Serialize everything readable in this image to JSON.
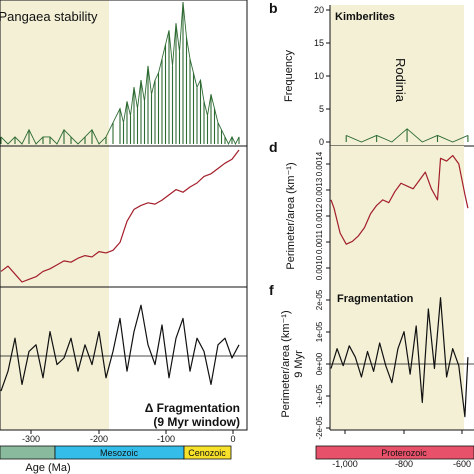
{
  "chart_data": [
    {
      "type": "line",
      "panel": "a",
      "region_label": "Pangaea stability",
      "x_domain": [
        -340,
        10
      ],
      "ylim": [
        0,
        20
      ],
      "shade_x": [
        -340,
        -170
      ],
      "x": [
        -340,
        -330,
        -320,
        -310,
        -300,
        -290,
        -280,
        -270,
        -260,
        -250,
        -240,
        -230,
        -220,
        -210,
        -200,
        -190,
        -180,
        -170,
        -165,
        -160,
        -155,
        -150,
        -145,
        -140,
        -135,
        -130,
        -125,
        -120,
        -115,
        -110,
        -105,
        -100,
        -95,
        -90,
        -85,
        -80,
        -75,
        -70,
        -65,
        -60,
        -55,
        -50,
        -45,
        -40,
        -35,
        -30,
        -25,
        -20,
        -15,
        -10,
        -5,
        0
      ],
      "values": [
        1,
        0,
        1,
        0,
        2,
        0,
        1,
        1,
        0,
        2,
        1,
        0,
        1,
        2,
        0,
        1,
        3,
        5,
        3,
        6,
        4,
        8,
        5,
        9,
        6,
        11,
        7,
        9,
        10,
        12,
        14,
        16,
        11,
        17,
        13,
        20,
        15,
        12,
        10,
        8,
        9,
        6,
        4,
        7,
        5,
        3,
        2,
        1,
        0,
        1,
        0,
        1
      ],
      "color": "#2e6b33"
    },
    {
      "type": "line",
      "panel": "c",
      "x_domain": [
        -340,
        10
      ],
      "ylim": [
        0,
        1
      ],
      "shade_x": [
        -340,
        -170
      ],
      "x": [
        -340,
        -330,
        -320,
        -310,
        -300,
        -290,
        -280,
        -270,
        -260,
        -250,
        -240,
        -230,
        -220,
        -210,
        -200,
        -190,
        -180,
        -170,
        -160,
        -150,
        -140,
        -130,
        -120,
        -110,
        -100,
        -90,
        -80,
        -70,
        -60,
        -50,
        -40,
        -30,
        -20,
        -10,
        0
      ],
      "values": [
        0.08,
        0.12,
        0.06,
        0.0,
        0.02,
        0.04,
        0.08,
        0.1,
        0.13,
        0.16,
        0.15,
        0.18,
        0.2,
        0.19,
        0.23,
        0.22,
        0.24,
        0.3,
        0.46,
        0.55,
        0.58,
        0.6,
        0.59,
        0.62,
        0.66,
        0.7,
        0.68,
        0.72,
        0.75,
        0.8,
        0.82,
        0.86,
        0.9,
        0.93,
        1.0
      ],
      "color": "#a31e2a"
    },
    {
      "type": "line",
      "panel": "e",
      "title": "Δ Fragmentation",
      "subtitle": "(9 Myr window)",
      "x_domain": [
        -340,
        10
      ],
      "ylim": [
        -1,
        1
      ],
      "zero_line": true,
      "shade_x": [
        -340,
        -170
      ],
      "x": [
        -340,
        -330,
        -320,
        -310,
        -300,
        -290,
        -280,
        -270,
        -260,
        -250,
        -240,
        -230,
        -220,
        -210,
        -200,
        -190,
        -180,
        -170,
        -160,
        -150,
        -140,
        -130,
        -120,
        -110,
        -100,
        -90,
        -80,
        -70,
        -60,
        -50,
        -40,
        -30,
        -20,
        -10,
        0
      ],
      "values": [
        -0.5,
        -0.2,
        0.3,
        -0.4,
        0.1,
        0.2,
        -0.3,
        0.4,
        -0.1,
        0.0,
        0.3,
        -0.2,
        0.2,
        -0.1,
        0.4,
        -0.3,
        0.1,
        0.6,
        -0.2,
        0.4,
        0.8,
        0.2,
        -0.1,
        0.5,
        -0.3,
        0.3,
        0.6,
        -0.2,
        0.3,
        0.1,
        -0.4,
        0.2,
        0.3,
        0.0,
        0.2
      ],
      "color": "#111111"
    },
    {
      "type": "line",
      "panel": "b",
      "title": "Kimberlites",
      "region_label": "Rodinia",
      "ylabel": "Frequency",
      "x_domain": [
        -1050,
        -580
      ],
      "ylim": [
        0,
        20
      ],
      "yticks": [
        "0",
        "5",
        "10",
        "15",
        "20"
      ],
      "shade_x": [
        -1050,
        -600
      ],
      "x": [
        -1000,
        -950,
        -900,
        -850,
        -800,
        -750,
        -700,
        -650,
        -600
      ],
      "values": [
        1,
        0,
        1,
        0,
        2,
        0,
        1,
        0,
        1
      ],
      "color": "#2e6b33"
    },
    {
      "type": "line",
      "panel": "d",
      "ylabel": "Perimeter/area (km⁻¹)",
      "x_domain": [
        -1050,
        -580
      ],
      "ylim": [
        0.00098,
        0.00146
      ],
      "yticks": [
        "0.0010",
        "0.0011",
        "0.0012",
        "0.0013",
        "0.0014"
      ],
      "shade_x": [
        -1050,
        -600
      ],
      "x": [
        -1050,
        -1040,
        -1020,
        -1000,
        -980,
        -960,
        -940,
        -920,
        -900,
        -880,
        -860,
        -840,
        -820,
        -800,
        -780,
        -760,
        -740,
        -720,
        -700,
        -690,
        -670,
        -650,
        -630,
        -610,
        -600
      ],
      "values": [
        0.00128,
        0.00125,
        0.00116,
        0.00112,
        0.00113,
        0.00115,
        0.00118,
        0.00123,
        0.00126,
        0.00128,
        0.00127,
        0.00131,
        0.00134,
        0.00133,
        0.00132,
        0.00135,
        0.00138,
        0.00132,
        0.00128,
        0.00143,
        0.00142,
        0.00144,
        0.00141,
        0.0013,
        0.00125
      ],
      "color": "#a31e2a"
    },
    {
      "type": "line",
      "panel": "f",
      "title": "Fragmentation",
      "ylabel": "Perimeter/area (km⁻¹)",
      "ylabel2": "9 Myr",
      "x_domain": [
        -1050,
        -580
      ],
      "ylim": [
        -2.4e-05,
        2.4e-05
      ],
      "yticks": [
        "-2e-05",
        "-1e-05",
        "0e+00",
        "1e-05",
        "2e-05"
      ],
      "zero_line": true,
      "shade_x": [
        -1050,
        -600
      ],
      "x": [
        -1050,
        -1030,
        -1010,
        -990,
        -970,
        -950,
        -930,
        -910,
        -890,
        -870,
        -850,
        -830,
        -810,
        -790,
        -770,
        -750,
        -730,
        -710,
        -690,
        -670,
        -650,
        -630,
        -610,
        -600
      ],
      "values": [
        -3e-06,
        4e-06,
        -2e-06,
        5e-06,
        1e-06,
        -6e-06,
        3e-06,
        -4e-06,
        6e-06,
        -2e-06,
        -8e-06,
        4e-06,
        1e-05,
        -5e-06,
        1.2e-05,
        -1.5e-05,
        1.8e-05,
        -3e-06,
        2.2e-05,
        -6e-06,
        4e-06,
        -2e-06,
        -2e-05,
        1e-06
      ],
      "color": "#111111"
    }
  ],
  "panel_letters": [
    "b",
    "d",
    "f"
  ],
  "left_axis": {
    "ticks": [
      "-300",
      "-200",
      "-100",
      "0"
    ],
    "xlabel": "Age (Ma)",
    "eras": [
      "Mesozoic",
      "Cenozoic"
    ]
  },
  "right_axis": {
    "ticks": [
      "-1,000",
      "-800",
      "-600"
    ],
    "eras": [
      "Proterozoic"
    ]
  },
  "colors": {
    "shade": "#f3f0d6",
    "green": "#2e6b33",
    "red": "#a31e2a",
    "paleozoic": "#8aba9d",
    "mesozoic": "#35bde9",
    "cenozoic": "#f7e12a",
    "proterozoic": "#e8516a"
  }
}
